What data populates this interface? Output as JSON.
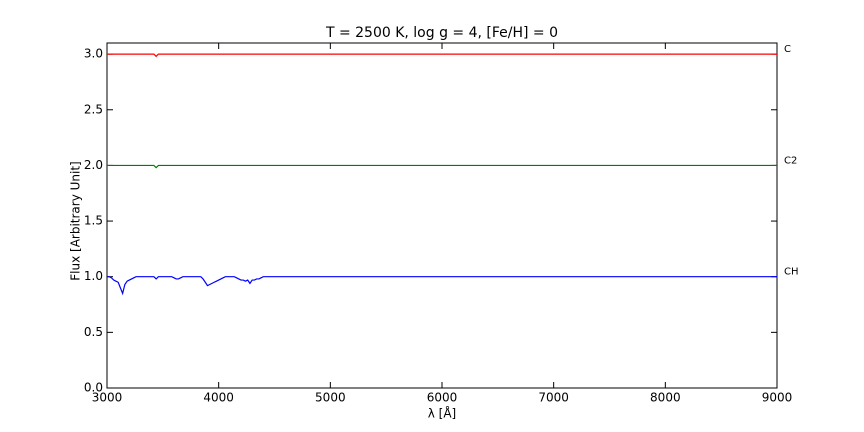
{
  "chart_data": {
    "type": "line",
    "title": "T = 2500 K, log g = 4, [Fe/H] = 0",
    "xlabel": "λ [Å]",
    "ylabel": "Flux [Arbitrary Unit]",
    "x": [
      3000,
      3020,
      3040,
      3060,
      3080,
      3100,
      3120,
      3140,
      3160,
      3180,
      3200,
      3220,
      3240,
      3260,
      3280,
      3300,
      3320,
      3340,
      3360,
      3380,
      3400,
      3420,
      3440,
      3460,
      3480,
      3500,
      3520,
      3540,
      3560,
      3580,
      3600,
      3620,
      3640,
      3660,
      3680,
      3700,
      3720,
      3740,
      3760,
      3780,
      3800,
      3820,
      3840,
      3860,
      3880,
      3900,
      3920,
      3940,
      3960,
      3980,
      4000,
      4020,
      4040,
      4060,
      4080,
      4100,
      4120,
      4140,
      4160,
      4180,
      4200,
      4220,
      4240,
      4260,
      4280,
      4300,
      4320,
      4340,
      4360,
      4380,
      4400,
      4500,
      5000,
      5500,
      6000,
      6500,
      7000,
      7500,
      8000,
      8500,
      9000
    ],
    "series": [
      {
        "name": "C",
        "color": "#ff0000",
        "values": [
          3,
          3,
          3,
          3,
          3,
          3,
          3,
          3,
          3,
          3,
          3,
          3,
          3,
          3,
          3,
          3,
          3,
          3,
          3,
          3,
          3,
          3,
          2.98,
          3,
          3,
          3,
          3,
          3,
          3,
          3,
          3,
          3,
          3,
          3,
          3,
          3,
          3,
          3,
          3,
          3,
          3,
          3,
          3,
          3,
          3,
          3,
          3,
          3,
          3,
          3,
          3,
          3,
          3,
          3,
          3,
          3,
          3,
          3,
          3,
          3,
          3,
          3,
          3,
          3,
          3,
          3,
          3,
          3,
          3,
          3,
          3,
          3,
          3,
          3,
          3,
          3,
          3,
          3,
          3,
          3,
          3
        ]
      },
      {
        "name": "C2",
        "color": "#008000",
        "values": [
          2,
          2,
          2,
          2,
          2,
          2,
          2,
          2,
          2,
          2,
          2,
          2,
          2,
          2,
          2,
          2,
          2,
          2,
          2,
          2,
          2,
          2,
          1.98,
          2,
          2,
          2,
          2,
          2,
          2,
          2,
          2,
          2,
          2,
          2,
          2,
          2,
          2,
          2,
          2,
          2,
          2,
          2,
          2,
          2,
          2,
          2,
          2,
          2,
          2,
          2,
          2,
          2,
          2,
          2,
          2,
          2,
          2,
          2,
          2,
          2,
          2,
          2,
          2,
          2,
          2,
          2,
          2,
          2,
          2,
          2,
          2,
          2,
          2,
          2,
          2,
          2,
          2,
          2,
          2,
          2,
          2
        ]
      },
      {
        "name": "CH",
        "color": "#0000ff",
        "values": [
          1,
          1,
          0.99,
          0.97,
          0.96,
          0.95,
          0.9,
          0.85,
          0.93,
          0.96,
          0.97,
          0.98,
          0.99,
          1,
          1,
          1,
          1,
          1,
          1,
          1,
          1,
          1,
          0.98,
          1,
          1,
          1,
          1,
          1,
          1,
          1,
          0.99,
          0.98,
          0.98,
          0.99,
          1,
          1,
          1,
          1,
          1,
          1,
          1,
          1,
          1,
          0.98,
          0.95,
          0.92,
          0.93,
          0.94,
          0.95,
          0.96,
          0.97,
          0.98,
          0.99,
          1,
          1,
          1,
          1,
          1,
          0.99,
          0.98,
          0.97,
          0.97,
          0.96,
          0.97,
          0.94,
          0.97,
          0.97,
          0.98,
          0.98,
          0.99,
          1,
          1,
          1,
          1,
          1,
          1,
          1,
          1,
          1,
          1,
          1
        ]
      }
    ],
    "xlim": [
      3000,
      9000
    ],
    "ylim": [
      0,
      3.1
    ],
    "xticks": [
      3000,
      4000,
      5000,
      6000,
      7000,
      8000,
      9000
    ],
    "yticks": [
      {
        "value": 0,
        "label": "0.0"
      },
      0.5,
      {
        "value": 1,
        "label": "1.0"
      },
      1.5,
      {
        "value": 2,
        "label": "2.0"
      },
      2.5,
      {
        "value": 3,
        "label": "3.0"
      }
    ]
  }
}
